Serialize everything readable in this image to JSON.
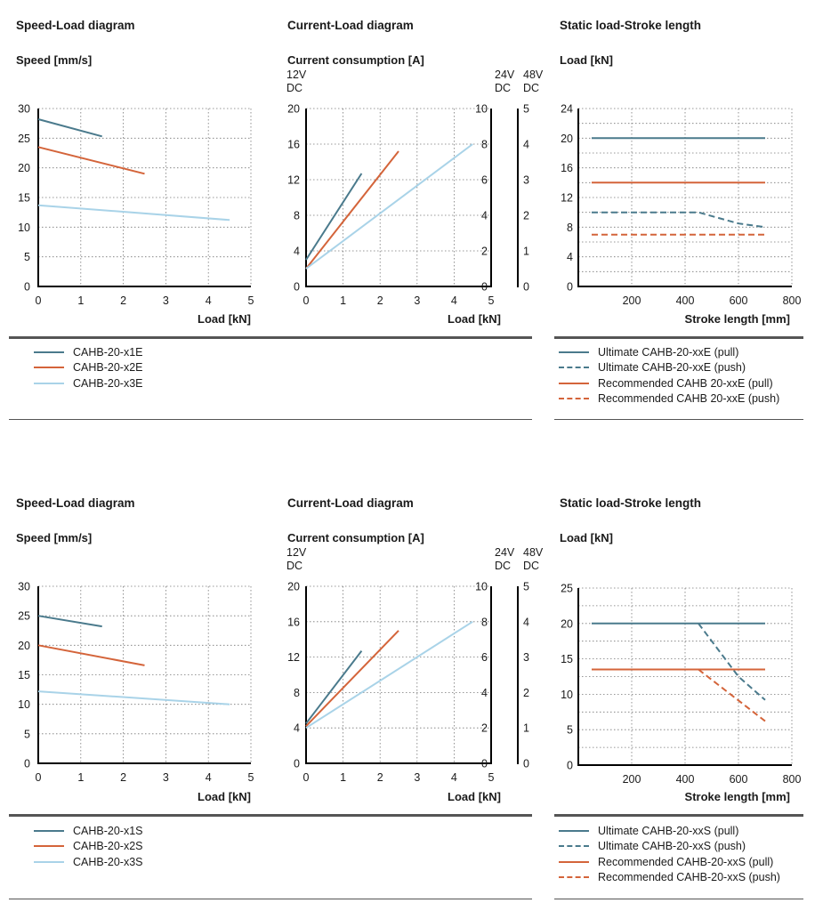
{
  "colors": {
    "dark": "#4a7a8c",
    "orange": "#d4643a",
    "light": "#a9d3e8"
  },
  "sections": [
    {
      "speed": {
        "title": "Speed-Load diagram",
        "ylabel": "Speed [mm/s]",
        "xlabel": "Load [kN]",
        "xticks": [
          "0",
          "1",
          "2",
          "3",
          "4",
          "5"
        ],
        "yticks": [
          "0",
          "5",
          "10",
          "15",
          "20",
          "25",
          "30"
        ]
      },
      "current": {
        "title": "Current-Load diagram",
        "ylabel": "Current consumption [A]",
        "xlabel": "Load [kN]",
        "dc12": [
          "12V",
          "DC"
        ],
        "dc24": [
          "24V",
          "DC"
        ],
        "dc48": [
          "48V",
          "DC"
        ],
        "xticks": [
          "0",
          "1",
          "2",
          "3",
          "4",
          "5"
        ],
        "yticks12": [
          "0",
          "4",
          "8",
          "12",
          "16",
          "20"
        ],
        "yticks24": [
          "0",
          "2",
          "4",
          "6",
          "8",
          "10"
        ],
        "yticks48": [
          "0",
          "1",
          "2",
          "3",
          "4",
          "5"
        ]
      },
      "static": {
        "title": "Static load-Stroke length",
        "ylabel": "Load [kN]",
        "xlabel": "Stroke length [mm]",
        "xticks": [
          "200",
          "400",
          "600",
          "800"
        ],
        "yticks": [
          "0",
          "4",
          "8",
          "12",
          "16",
          "20",
          "24"
        ]
      },
      "legend_left": [
        "CAHB-20-x1E",
        "CAHB-20-x2E",
        "CAHB-20-x3E"
      ],
      "legend_right": [
        "Ultimate CAHB-20-xxE (pull)",
        "Ultimate CAHB-20-xxE (push)",
        "Recommended CAHB 20-xxE (pull)",
        "Recommended CAHB 20-xxE (push)"
      ]
    },
    {
      "speed": {
        "title": "Speed-Load diagram",
        "ylabel": "Speed [mm/s]",
        "xlabel": "Load [kN]",
        "xticks": [
          "0",
          "1",
          "2",
          "3",
          "4",
          "5"
        ],
        "yticks": [
          "0",
          "5",
          "10",
          "15",
          "20",
          "25",
          "30"
        ]
      },
      "current": {
        "title": "Current-Load diagram",
        "ylabel": "Current consumption [A]",
        "xlabel": "Load [kN]",
        "dc12": [
          "12V",
          "DC"
        ],
        "dc24": [
          "24V",
          "DC"
        ],
        "dc48": [
          "48V",
          "DC"
        ],
        "xticks": [
          "0",
          "1",
          "2",
          "3",
          "4",
          "5"
        ],
        "yticks12": [
          "0",
          "4",
          "8",
          "12",
          "16",
          "20"
        ],
        "yticks24": [
          "0",
          "2",
          "4",
          "6",
          "8",
          "10"
        ],
        "yticks48": [
          "0",
          "1",
          "2",
          "3",
          "4",
          "5"
        ]
      },
      "static": {
        "title": "Static load-Stroke length",
        "ylabel": "Load [kN]",
        "xlabel": "Stroke length [mm]",
        "xticks": [
          "200",
          "400",
          "600",
          "800"
        ],
        "yticks": [
          "0",
          "5",
          "10",
          "15",
          "20",
          "25"
        ]
      },
      "legend_left": [
        "CAHB-20-x1S",
        "CAHB-20-x2S",
        "CAHB-20-x3S"
      ],
      "legend_right": [
        "Ultimate CAHB-20-xxS (pull)",
        "Ultimate CAHB-20-xxS (push)",
        "Recommended CAHB-20-xxS (pull)",
        "Recommended CAHB-20-xxS (push)"
      ]
    }
  ],
  "chart_data": [
    {
      "type": "line",
      "title": "Speed-Load diagram",
      "xlabel": "Load [kN]",
      "ylabel": "Speed [mm/s]",
      "xlim": [
        0,
        5
      ],
      "ylim": [
        0,
        30
      ],
      "grid": true,
      "series": [
        {
          "name": "CAHB-20-x1E",
          "color": "dark",
          "points": [
            [
              0,
              28.2
            ],
            [
              1.5,
              25.3
            ]
          ]
        },
        {
          "name": "CAHB-20-x2E",
          "color": "orange",
          "points": [
            [
              0,
              23.5
            ],
            [
              2.5,
              19.0
            ]
          ]
        },
        {
          "name": "CAHB-20-x3E",
          "color": "light",
          "points": [
            [
              0,
              13.7
            ],
            [
              4.5,
              11.2
            ]
          ]
        }
      ]
    },
    {
      "type": "line",
      "title": "Current-Load diagram",
      "xlabel": "Load [kN]",
      "ylabel": "Current consumption [A]",
      "xlim": [
        0,
        5
      ],
      "ylim": [
        0,
        20
      ],
      "grid": true,
      "series": [
        {
          "name": "CAHB-20-x1E",
          "color": "dark",
          "points": [
            [
              0,
              3.0
            ],
            [
              1.5,
              12.7
            ]
          ]
        },
        {
          "name": "CAHB-20-x2E",
          "color": "orange",
          "points": [
            [
              0,
              2.0
            ],
            [
              2.5,
              15.2
            ]
          ]
        },
        {
          "name": "CAHB-20-x3E",
          "color": "light",
          "points": [
            [
              0,
              2.0
            ],
            [
              4.5,
              16.0
            ]
          ]
        }
      ]
    },
    {
      "type": "line",
      "title": "Static load-Stroke length",
      "xlabel": "Stroke length [mm]",
      "ylabel": "Load [kN]",
      "xlim": [
        0,
        800
      ],
      "ylim": [
        0,
        24
      ],
      "grid": true,
      "series": [
        {
          "name": "Ultimate CAHB-20-xxE (pull)",
          "color": "dark",
          "dash": false,
          "points": [
            [
              50,
              20
            ],
            [
              700,
              20
            ]
          ]
        },
        {
          "name": "Ultimate CAHB-20-xxE (push)",
          "color": "dark",
          "dash": true,
          "points": [
            [
              50,
              10
            ],
            [
              450,
              10
            ],
            [
              600,
              8.5
            ],
            [
              700,
              8
            ]
          ]
        },
        {
          "name": "Recommended CAHB 20-xxE (pull)",
          "color": "orange",
          "dash": false,
          "points": [
            [
              50,
              14
            ],
            [
              700,
              14
            ]
          ]
        },
        {
          "name": "Recommended CAHB 20-xxE (push)",
          "color": "orange",
          "dash": true,
          "points": [
            [
              50,
              7
            ],
            [
              700,
              7
            ]
          ]
        }
      ]
    },
    {
      "type": "line",
      "title": "Speed-Load diagram",
      "xlabel": "Load [kN]",
      "ylabel": "Speed [mm/s]",
      "xlim": [
        0,
        5
      ],
      "ylim": [
        0,
        30
      ],
      "grid": true,
      "series": [
        {
          "name": "CAHB-20-x1S",
          "color": "dark",
          "points": [
            [
              0,
              25.0
            ],
            [
              1.5,
              23.2
            ]
          ]
        },
        {
          "name": "CAHB-20-x2S",
          "color": "orange",
          "points": [
            [
              0,
              20.0
            ],
            [
              2.5,
              16.6
            ]
          ]
        },
        {
          "name": "CAHB-20-x3S",
          "color": "light",
          "points": [
            [
              0,
              12.2
            ],
            [
              4.5,
              10.0
            ]
          ]
        }
      ]
    },
    {
      "type": "line",
      "title": "Current-Load diagram",
      "xlabel": "Load [kN]",
      "ylabel": "Current consumption [A]",
      "xlim": [
        0,
        5
      ],
      "ylim": [
        0,
        20
      ],
      "grid": true,
      "series": [
        {
          "name": "CAHB-20-x1S",
          "color": "dark",
          "points": [
            [
              0,
              4.5
            ],
            [
              1.5,
              12.7
            ]
          ]
        },
        {
          "name": "CAHB-20-x2S",
          "color": "orange",
          "points": [
            [
              0,
              4.2
            ],
            [
              2.5,
              15.0
            ]
          ]
        },
        {
          "name": "CAHB-20-x3S",
          "color": "light",
          "points": [
            [
              0,
              4.0
            ],
            [
              4.5,
              16.0
            ]
          ]
        }
      ]
    },
    {
      "type": "line",
      "title": "Static load-Stroke length",
      "xlabel": "Stroke length [mm]",
      "ylabel": "Load [kN]",
      "xlim": [
        0,
        800
      ],
      "ylim": [
        0,
        25
      ],
      "grid": true,
      "series": [
        {
          "name": "Ultimate CAHB-20-xxS (pull)",
          "color": "dark",
          "dash": false,
          "points": [
            [
              50,
              20
            ],
            [
              700,
              20
            ]
          ]
        },
        {
          "name": "Ultimate CAHB-20-xxS (push)",
          "color": "dark",
          "dash": true,
          "points": [
            [
              450,
              20
            ],
            [
              600,
              12.5
            ],
            [
              700,
              9.2
            ]
          ]
        },
        {
          "name": "Recommended CAHB-20-xxS (pull)",
          "color": "orange",
          "dash": false,
          "points": [
            [
              50,
              13.5
            ],
            [
              700,
              13.5
            ]
          ]
        },
        {
          "name": "Recommended CAHB-20-xxS (push)",
          "color": "orange",
          "dash": true,
          "points": [
            [
              450,
              13.5
            ],
            [
              700,
              6.2
            ]
          ]
        }
      ]
    }
  ]
}
